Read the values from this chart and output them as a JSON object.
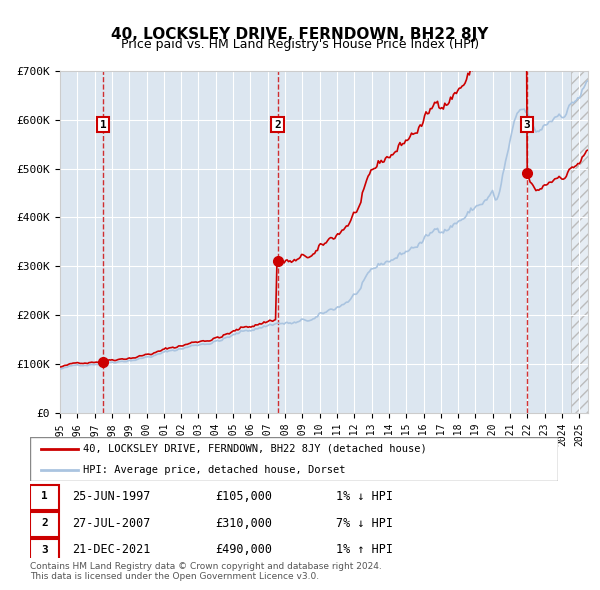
{
  "title": "40, LOCKSLEY DRIVE, FERNDOWN, BH22 8JY",
  "subtitle": "Price paid vs. HM Land Registry's House Price Index (HPI)",
  "background_color": "#dce6f0",
  "plot_bg_color": "#dce6f0",
  "hpi_line_color": "#aac4e0",
  "price_line_color": "#cc0000",
  "marker_color": "#cc0000",
  "vline_color": "#cc0000",
  "purchases": [
    {
      "date": 1997.49,
      "price": 105000,
      "label": "1"
    },
    {
      "date": 2007.57,
      "price": 310000,
      "label": "2"
    },
    {
      "date": 2021.97,
      "price": 490000,
      "label": "3"
    }
  ],
  "purchase_dates_str": [
    "25-JUN-1997",
    "27-JUL-2007",
    "21-DEC-2021"
  ],
  "purchase_prices_str": [
    "£105,000",
    "£310,000",
    "£490,000"
  ],
  "purchase_hpi_rel": [
    "1% ↓ HPI",
    "7% ↓ HPI",
    "1% ↑ HPI"
  ],
  "ylim": [
    0,
    700000
  ],
  "xlim": [
    1995,
    2025.5
  ],
  "ylabel_ticks": [
    0,
    100000,
    200000,
    300000,
    400000,
    500000,
    600000,
    700000
  ],
  "ytick_labels": [
    "£0",
    "£100K",
    "£200K",
    "£300K",
    "£400K",
    "£500K",
    "£600K",
    "£700K"
  ],
  "xtick_years": [
    1995,
    1996,
    1997,
    1998,
    1999,
    2000,
    2001,
    2002,
    2003,
    2004,
    2005,
    2006,
    2007,
    2008,
    2009,
    2010,
    2011,
    2012,
    2013,
    2014,
    2015,
    2016,
    2017,
    2018,
    2019,
    2020,
    2021,
    2022,
    2023,
    2024,
    2025
  ],
  "legend_line1": "40, LOCKSLEY DRIVE, FERNDOWN, BH22 8JY (detached house)",
  "legend_line2": "HPI: Average price, detached house, Dorset",
  "footer": "Contains HM Land Registry data © Crown copyright and database right 2024.\nThis data is licensed under the Open Government Licence v3.0.",
  "hatch_right": true
}
